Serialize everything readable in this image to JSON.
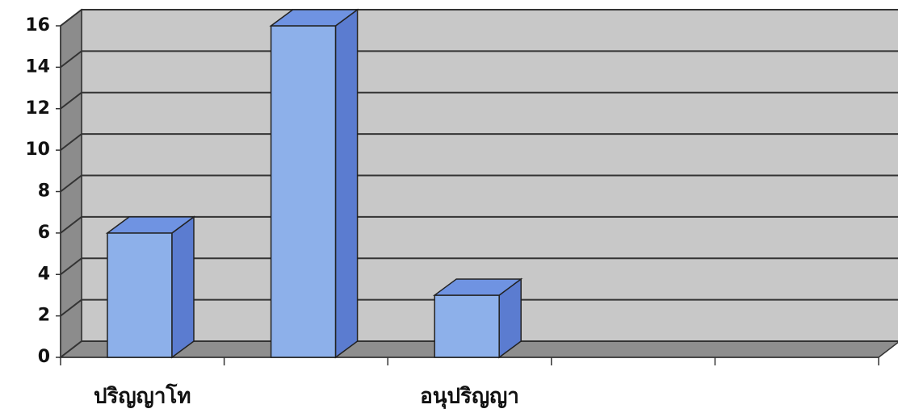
{
  "chart_data": {
    "type": "bar3d",
    "categories": [
      "ปริญญาโท",
      null,
      "อนุปริญญา",
      null,
      null
    ],
    "values": [
      6,
      16,
      3,
      null,
      null
    ],
    "color": "#8db0ea",
    "ylim": [
      0,
      16
    ],
    "yticks": [
      0,
      2,
      4,
      6,
      8,
      10,
      12,
      14,
      16
    ],
    "grid": true
  }
}
